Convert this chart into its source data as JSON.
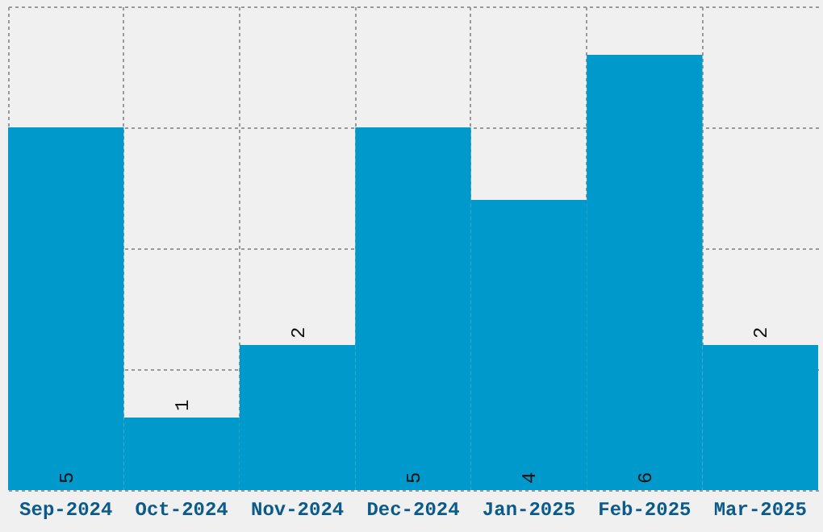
{
  "chart_data": {
    "type": "bar",
    "categories": [
      "Sep-2024",
      "Oct-2024",
      "Nov-2024",
      "Dec-2024",
      "Jan-2025",
      "Feb-2025",
      "Mar-2025"
    ],
    "values": [
      5,
      1,
      2,
      5,
      4,
      6,
      2
    ],
    "color": "#0099cc",
    "ylim": [
      0,
      6.667
    ],
    "yticks": [
      {
        "value": 0,
        "label": null
      },
      {
        "value": 1.667,
        "label": null
      },
      {
        "value": 3.333,
        "label": null
      },
      {
        "value": 5,
        "label": null
      },
      {
        "value": 6.667,
        "label": null
      }
    ],
    "grid": true,
    "tick_labels": "x",
    "data_labels": true
  }
}
